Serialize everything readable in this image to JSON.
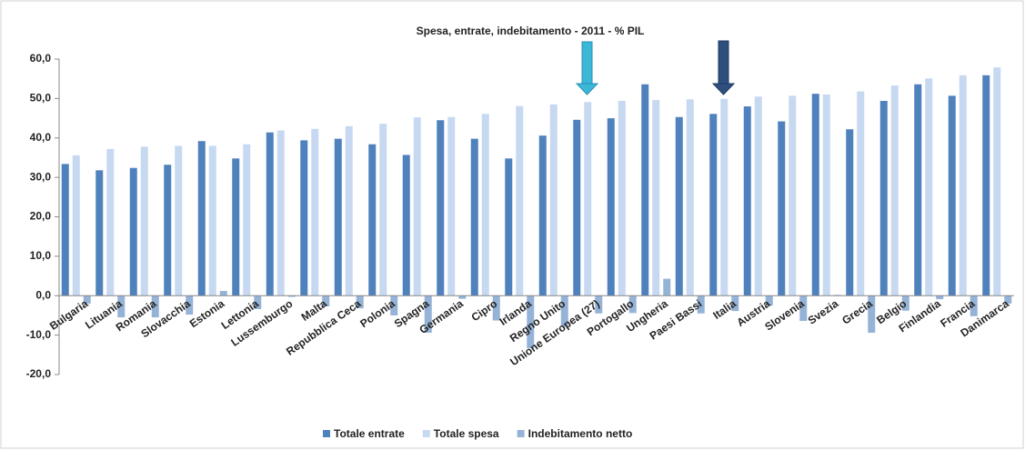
{
  "chart_data": {
    "type": "bar",
    "title": "Spesa, entrate, indebitamento - 2011  - % PIL",
    "categories": [
      "Bulgaria",
      "Lituania",
      "Romania",
      "Slovacchia",
      "Estonia",
      "Lettonia",
      "Lussemburgo",
      "Malta",
      "Repubblica Ceca",
      "Polonia",
      "Spagna",
      "Germania",
      "Cipro",
      "Irlanda",
      "Regno Unito",
      "Unione Europea (27)",
      "Portogallo",
      "Ungheria",
      "Paesi Bassi",
      "Italia",
      "Austria",
      "Slovenia",
      "Svezia",
      "Grecia",
      "Belgio",
      "Finlandia",
      "Francia",
      "Danimarca"
    ],
    "series": [
      {
        "name": "Totale entrate",
        "color": "#4f81bd",
        "values": [
          33.4,
          31.8,
          32.4,
          33.2,
          39.2,
          34.8,
          41.4,
          39.4,
          39.8,
          38.4,
          35.7,
          44.5,
          39.8,
          34.8,
          40.6,
          44.6,
          45.0,
          53.6,
          45.3,
          46.1,
          48.0,
          44.2,
          51.2,
          42.2,
          49.4,
          53.6,
          50.7,
          55.9
        ]
      },
      {
        "name": "Totale spesa",
        "color": "#c6d9f1",
        "values": [
          35.6,
          37.2,
          37.8,
          38.0,
          38.0,
          38.4,
          41.9,
          42.3,
          43.0,
          43.6,
          45.2,
          45.3,
          46.1,
          48.1,
          48.5,
          49.1,
          49.4,
          49.6,
          49.8,
          49.9,
          50.5,
          50.7,
          51.0,
          51.8,
          53.3,
          55.1,
          55.9,
          57.9
        ]
      },
      {
        "name": "Indebitamento netto",
        "color": "#95b3d7",
        "values": [
          -2.0,
          -5.5,
          -5.5,
          -4.8,
          1.2,
          -3.4,
          -0.3,
          -2.7,
          -3.2,
          -5.0,
          -9.4,
          -0.8,
          -6.3,
          -13.3,
          -7.8,
          -4.5,
          -4.4,
          4.3,
          -4.5,
          -3.9,
          -2.5,
          -6.4,
          0.2,
          -9.4,
          -3.8,
          -0.9,
          -5.2,
          -2.0
        ]
      }
    ],
    "ylim": [
      -20,
      60
    ],
    "yticks": [
      {
        "value": -20,
        "label": "-20,0"
      },
      {
        "value": -10,
        "label": "-10,0"
      },
      {
        "value": 0,
        "label": "0,0"
      },
      {
        "value": 10,
        "label": "10,0"
      },
      {
        "value": 20,
        "label": "20,0"
      },
      {
        "value": 30,
        "label": "30,0"
      },
      {
        "value": 40,
        "label": "40,0"
      },
      {
        "value": 50,
        "label": "50,0"
      },
      {
        "value": 60,
        "label": "60,0"
      }
    ],
    "legend": "bottom"
  }
}
